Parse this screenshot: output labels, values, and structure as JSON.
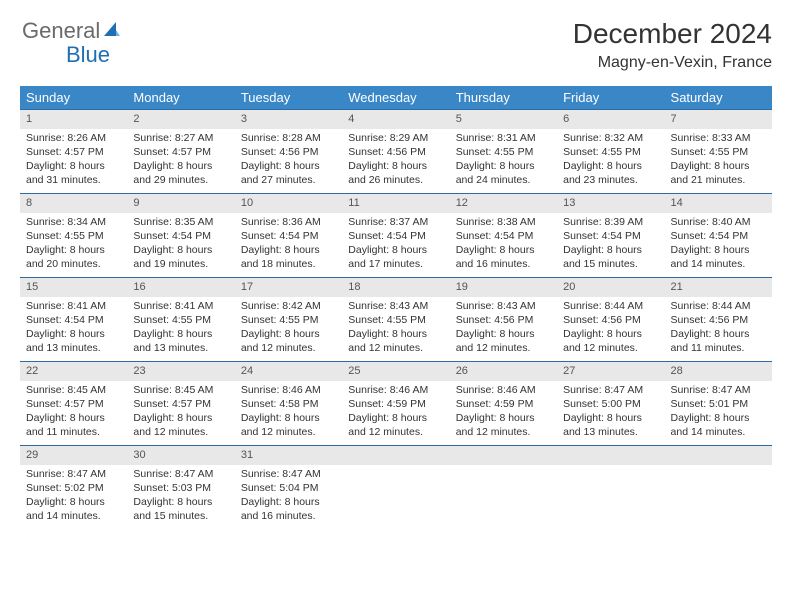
{
  "logo": {
    "word1": "General",
    "word2": "Blue",
    "sail_color": "#1f6fb2"
  },
  "title": "December 2024",
  "subtitle": "Magny-en-Vexin, France",
  "colors": {
    "header_bg": "#3a87c8",
    "header_text": "#ffffff",
    "daynum_bg": "#e8e8e8",
    "rule": "#2f6aa0",
    "body_text": "#333333"
  },
  "weekdays": [
    "Sunday",
    "Monday",
    "Tuesday",
    "Wednesday",
    "Thursday",
    "Friday",
    "Saturday"
  ],
  "days": [
    {
      "n": "1",
      "sunrise": "Sunrise: 8:26 AM",
      "sunset": "Sunset: 4:57 PM",
      "day1": "Daylight: 8 hours",
      "day2": "and 31 minutes."
    },
    {
      "n": "2",
      "sunrise": "Sunrise: 8:27 AM",
      "sunset": "Sunset: 4:57 PM",
      "day1": "Daylight: 8 hours",
      "day2": "and 29 minutes."
    },
    {
      "n": "3",
      "sunrise": "Sunrise: 8:28 AM",
      "sunset": "Sunset: 4:56 PM",
      "day1": "Daylight: 8 hours",
      "day2": "and 27 minutes."
    },
    {
      "n": "4",
      "sunrise": "Sunrise: 8:29 AM",
      "sunset": "Sunset: 4:56 PM",
      "day1": "Daylight: 8 hours",
      "day2": "and 26 minutes."
    },
    {
      "n": "5",
      "sunrise": "Sunrise: 8:31 AM",
      "sunset": "Sunset: 4:55 PM",
      "day1": "Daylight: 8 hours",
      "day2": "and 24 minutes."
    },
    {
      "n": "6",
      "sunrise": "Sunrise: 8:32 AM",
      "sunset": "Sunset: 4:55 PM",
      "day1": "Daylight: 8 hours",
      "day2": "and 23 minutes."
    },
    {
      "n": "7",
      "sunrise": "Sunrise: 8:33 AM",
      "sunset": "Sunset: 4:55 PM",
      "day1": "Daylight: 8 hours",
      "day2": "and 21 minutes."
    },
    {
      "n": "8",
      "sunrise": "Sunrise: 8:34 AM",
      "sunset": "Sunset: 4:55 PM",
      "day1": "Daylight: 8 hours",
      "day2": "and 20 minutes."
    },
    {
      "n": "9",
      "sunrise": "Sunrise: 8:35 AM",
      "sunset": "Sunset: 4:54 PM",
      "day1": "Daylight: 8 hours",
      "day2": "and 19 minutes."
    },
    {
      "n": "10",
      "sunrise": "Sunrise: 8:36 AM",
      "sunset": "Sunset: 4:54 PM",
      "day1": "Daylight: 8 hours",
      "day2": "and 18 minutes."
    },
    {
      "n": "11",
      "sunrise": "Sunrise: 8:37 AM",
      "sunset": "Sunset: 4:54 PM",
      "day1": "Daylight: 8 hours",
      "day2": "and 17 minutes."
    },
    {
      "n": "12",
      "sunrise": "Sunrise: 8:38 AM",
      "sunset": "Sunset: 4:54 PM",
      "day1": "Daylight: 8 hours",
      "day2": "and 16 minutes."
    },
    {
      "n": "13",
      "sunrise": "Sunrise: 8:39 AM",
      "sunset": "Sunset: 4:54 PM",
      "day1": "Daylight: 8 hours",
      "day2": "and 15 minutes."
    },
    {
      "n": "14",
      "sunrise": "Sunrise: 8:40 AM",
      "sunset": "Sunset: 4:54 PM",
      "day1": "Daylight: 8 hours",
      "day2": "and 14 minutes."
    },
    {
      "n": "15",
      "sunrise": "Sunrise: 8:41 AM",
      "sunset": "Sunset: 4:54 PM",
      "day1": "Daylight: 8 hours",
      "day2": "and 13 minutes."
    },
    {
      "n": "16",
      "sunrise": "Sunrise: 8:41 AM",
      "sunset": "Sunset: 4:55 PM",
      "day1": "Daylight: 8 hours",
      "day2": "and 13 minutes."
    },
    {
      "n": "17",
      "sunrise": "Sunrise: 8:42 AM",
      "sunset": "Sunset: 4:55 PM",
      "day1": "Daylight: 8 hours",
      "day2": "and 12 minutes."
    },
    {
      "n": "18",
      "sunrise": "Sunrise: 8:43 AM",
      "sunset": "Sunset: 4:55 PM",
      "day1": "Daylight: 8 hours",
      "day2": "and 12 minutes."
    },
    {
      "n": "19",
      "sunrise": "Sunrise: 8:43 AM",
      "sunset": "Sunset: 4:56 PM",
      "day1": "Daylight: 8 hours",
      "day2": "and 12 minutes."
    },
    {
      "n": "20",
      "sunrise": "Sunrise: 8:44 AM",
      "sunset": "Sunset: 4:56 PM",
      "day1": "Daylight: 8 hours",
      "day2": "and 12 minutes."
    },
    {
      "n": "21",
      "sunrise": "Sunrise: 8:44 AM",
      "sunset": "Sunset: 4:56 PM",
      "day1": "Daylight: 8 hours",
      "day2": "and 11 minutes."
    },
    {
      "n": "22",
      "sunrise": "Sunrise: 8:45 AM",
      "sunset": "Sunset: 4:57 PM",
      "day1": "Daylight: 8 hours",
      "day2": "and 11 minutes."
    },
    {
      "n": "23",
      "sunrise": "Sunrise: 8:45 AM",
      "sunset": "Sunset: 4:57 PM",
      "day1": "Daylight: 8 hours",
      "day2": "and 12 minutes."
    },
    {
      "n": "24",
      "sunrise": "Sunrise: 8:46 AM",
      "sunset": "Sunset: 4:58 PM",
      "day1": "Daylight: 8 hours",
      "day2": "and 12 minutes."
    },
    {
      "n": "25",
      "sunrise": "Sunrise: 8:46 AM",
      "sunset": "Sunset: 4:59 PM",
      "day1": "Daylight: 8 hours",
      "day2": "and 12 minutes."
    },
    {
      "n": "26",
      "sunrise": "Sunrise: 8:46 AM",
      "sunset": "Sunset: 4:59 PM",
      "day1": "Daylight: 8 hours",
      "day2": "and 12 minutes."
    },
    {
      "n": "27",
      "sunrise": "Sunrise: 8:47 AM",
      "sunset": "Sunset: 5:00 PM",
      "day1": "Daylight: 8 hours",
      "day2": "and 13 minutes."
    },
    {
      "n": "28",
      "sunrise": "Sunrise: 8:47 AM",
      "sunset": "Sunset: 5:01 PM",
      "day1": "Daylight: 8 hours",
      "day2": "and 14 minutes."
    },
    {
      "n": "29",
      "sunrise": "Sunrise: 8:47 AM",
      "sunset": "Sunset: 5:02 PM",
      "day1": "Daylight: 8 hours",
      "day2": "and 14 minutes."
    },
    {
      "n": "30",
      "sunrise": "Sunrise: 8:47 AM",
      "sunset": "Sunset: 5:03 PM",
      "day1": "Daylight: 8 hours",
      "day2": "and 15 minutes."
    },
    {
      "n": "31",
      "sunrise": "Sunrise: 8:47 AM",
      "sunset": "Sunset: 5:04 PM",
      "day1": "Daylight: 8 hours",
      "day2": "and 16 minutes."
    }
  ]
}
